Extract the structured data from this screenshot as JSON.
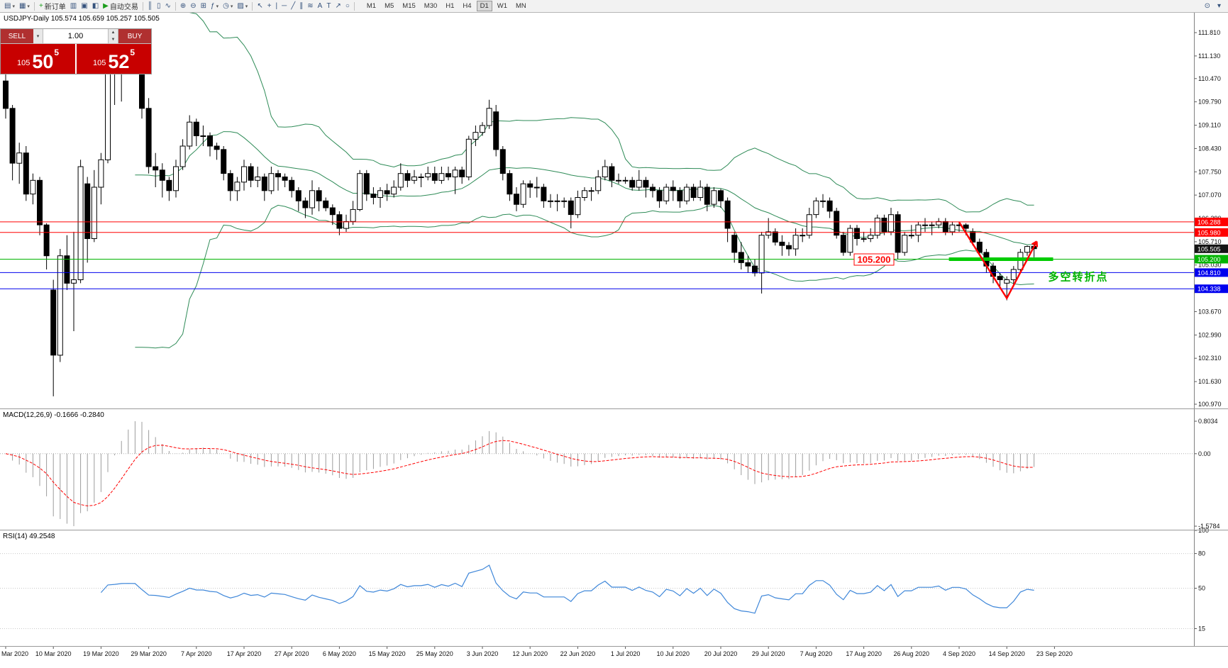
{
  "toolbar": {
    "items": [
      {
        "name": "new-chart",
        "icon": "▤",
        "caret": "▾"
      },
      {
        "name": "chart-profiles",
        "icon": "▦",
        "caret": "▾"
      },
      {
        "name": "separator"
      },
      {
        "name": "new-order",
        "icon": "+",
        "icon_color": "#1c9e1c",
        "label": "新订单"
      },
      {
        "name": "market-watch",
        "icon": "▥"
      },
      {
        "name": "data-window",
        "icon": "▣"
      },
      {
        "name": "navigator",
        "icon": "◧"
      },
      {
        "name": "auto-trading",
        "icon": "▶",
        "icon_color": "#1c9e1c",
        "label": "自动交易"
      },
      {
        "name": "separator"
      },
      {
        "name": "bar-chart-mode",
        "icon": "║"
      },
      {
        "name": "candlestick-mode",
        "icon": "▯"
      },
      {
        "name": "line-chart-mode",
        "icon": "∿"
      },
      {
        "name": "separator"
      },
      {
        "name": "zoom-in",
        "icon": "⊕"
      },
      {
        "name": "zoom-out",
        "icon": "⊖"
      },
      {
        "name": "tile-windows",
        "icon": "⊞"
      },
      {
        "name": "indicators",
        "icon": "ƒ",
        "caret": "▾"
      },
      {
        "name": "periods",
        "icon": "◷",
        "caret": "▾"
      },
      {
        "name": "templates",
        "icon": "▨",
        "caret": "▾"
      },
      {
        "name": "separator"
      },
      {
        "name": "cursor",
        "icon": "↖"
      },
      {
        "name": "crosshair",
        "icon": "+"
      },
      {
        "name": "vertical-line",
        "icon": "|"
      },
      {
        "name": "horizontal-line",
        "icon": "─"
      },
      {
        "name": "trendline",
        "icon": "╱"
      },
      {
        "name": "equidistant-channel",
        "icon": "∥"
      },
      {
        "name": "fibonacci",
        "icon": "≋"
      },
      {
        "name": "text",
        "icon": "A"
      },
      {
        "name": "text-label",
        "icon": "T"
      },
      {
        "name": "arrow-tool",
        "icon": "↗"
      },
      {
        "name": "shapes",
        "icon": "○"
      },
      {
        "name": "separator"
      }
    ],
    "timeframes": [
      "M1",
      "M5",
      "M15",
      "M30",
      "H1",
      "H4",
      "D1",
      "W1",
      "MN"
    ],
    "active_timeframe": "D1",
    "right_icons": [
      {
        "name": "search",
        "icon": "⊙"
      },
      {
        "name": "toolbar-options",
        "icon": "▾"
      }
    ]
  },
  "trade_panel": {
    "sell_label": "SELL",
    "buy_label": "BUY",
    "volume": "1.00",
    "sell_price": {
      "prefix": "105",
      "pips": "50",
      "pipette": "5"
    },
    "buy_price": {
      "prefix": "105",
      "pips": "52",
      "pipette": "5"
    }
  },
  "chart": {
    "title_line": "USDJPY-Daily  105.574 105.659 105.257 105.505"
  },
  "indicators": {
    "macd_label": "MACD(12,26,9) -0.1666 -0.2840",
    "rsi_label": "RSI(14) 49.2548"
  },
  "annotations": {
    "price_label": "105.200",
    "turning_label": "多空转折点"
  },
  "chart_data": {
    "type": "candlestick",
    "symbol": "USDJPY",
    "timeframe": "Daily",
    "ohlc_current": {
      "open": 105.574,
      "high": 105.659,
      "low": 105.257,
      "close": 105.505
    },
    "y_ticks": [
      "111.810",
      "111.130",
      "110.470",
      "109.790",
      "109.110",
      "108.430",
      "107.750",
      "107.070",
      "106.390",
      "105.710",
      "105.030",
      "104.350",
      "103.670",
      "102.990",
      "102.310",
      "101.630",
      "100.970"
    ],
    "x_labels": [
      "Mar 2020",
      "10 Mar 2020",
      "19 Mar 2020",
      "29 Mar 2020",
      "7 Apr 2020",
      "17 Apr 2020",
      "27 Apr 2020",
      "6 May 2020",
      "15 May 2020",
      "25 May 2020",
      "3 Jun 2020",
      "12 Jun 2020",
      "22 Jun 2020",
      "1 Jul 2020",
      "10 Jul 2020",
      "20 Jul 2020",
      "29 Jul 2020",
      "7 Aug 2020",
      "17 Aug 2020",
      "26 Aug 2020",
      "4 Sep 2020",
      "14 Sep 2020",
      "23 Sep 2020"
    ],
    "label_every_n_bars": 7,
    "levels": [
      {
        "label": "106.288",
        "price": 106.288,
        "color": "#ff0000",
        "line": true
      },
      {
        "label": "105.980",
        "price": 105.98,
        "color": "#ff0000",
        "line": true
      },
      {
        "label": "105.505",
        "price": 105.505,
        "color": "#141414",
        "line": false
      },
      {
        "label": "105.200",
        "price": 105.2,
        "color": "#00b400",
        "line": true
      },
      {
        "label": "104.810",
        "price": 104.81,
        "color": "#0000ee",
        "line": true
      },
      {
        "label": "104.338",
        "price": 104.338,
        "color": "#0000ee",
        "line": true
      }
    ],
    "bollinger": {
      "period": 20,
      "deviation": 2,
      "color": "#2e8b57"
    },
    "macd": {
      "fast": 12,
      "slow": 26,
      "signal": 9,
      "scale_labels": [
        "0.8034",
        "0.00",
        "-1.5784"
      ],
      "histogram_color": "#9c9c9c",
      "signal_color": "#ff0000"
    },
    "rsi": {
      "period": 14,
      "value": 49.2548,
      "line_color": "#3f87d9",
      "level_lines": [
        80,
        50,
        15
      ],
      "scale_labels": [
        {
          "label": "100",
          "value": 100
        },
        {
          "label": "80",
          "value": 80
        },
        {
          "label": "50",
          "value": 50
        },
        {
          "label": "15",
          "value": 15
        }
      ]
    },
    "drawings": {
      "thick_support": {
        "i1": 138.5,
        "i2": 153.8,
        "price": 105.2,
        "color": "#00cc00"
      },
      "zigzag": {
        "color": "#ff0000",
        "points": [
          {
            "i": 140,
            "p": 106.28
          },
          {
            "i": 147,
            "p": 104.06
          },
          {
            "i": 151.4,
            "p": 105.72
          }
        ]
      },
      "price_callout": {
        "i": 127.5,
        "p": 105.2
      },
      "turning_text": {
        "i": 157.5,
        "p": 104.7
      }
    },
    "candles": [
      [
        110.4,
        110.6,
        109.3,
        109.6
      ],
      [
        109.6,
        109.7,
        107.5,
        108.0
      ],
      [
        108.0,
        108.6,
        107.4,
        108.3
      ],
      [
        108.3,
        108.5,
        106.9,
        107.1
      ],
      [
        107.1,
        107.7,
        106.8,
        107.5
      ],
      [
        107.5,
        107.6,
        105.9,
        106.2
      ],
      [
        106.2,
        106.25,
        104.9,
        105.3
      ],
      [
        104.3,
        104.6,
        101.2,
        102.4
      ],
      [
        102.4,
        105.5,
        102.2,
        105.3
      ],
      [
        105.3,
        105.9,
        104.3,
        104.5
      ],
      [
        104.5,
        106.0,
        103.1,
        104.6
      ],
      [
        104.6,
        108.1,
        104.5,
        107.9
      ],
      [
        107.4,
        107.6,
        105.1,
        105.8
      ],
      [
        105.8,
        107.8,
        105.7,
        107.3
      ],
      [
        107.3,
        108.3,
        106.8,
        108.1
      ],
      [
        108.1,
        110.95,
        108.0,
        110.7
      ],
      [
        110.7,
        111.5,
        109.7,
        110.9
      ],
      [
        110.9,
        111.6,
        109.8,
        111.2
      ],
      [
        111.2,
        111.71,
        110.8,
        111.25
      ],
      [
        111.25,
        111.6,
        110.9,
        111.2
      ],
      [
        111.2,
        111.3,
        109.3,
        109.6
      ],
      [
        109.6,
        109.9,
        107.7,
        107.9
      ],
      [
        107.9,
        108.3,
        107.3,
        107.8
      ],
      [
        107.8,
        108.0,
        107.0,
        107.5
      ],
      [
        107.5,
        107.6,
        106.9,
        107.2
      ],
      [
        107.2,
        108.1,
        107.0,
        107.9
      ],
      [
        107.9,
        108.7,
        107.8,
        108.5
      ],
      [
        108.5,
        109.4,
        108.4,
        109.2
      ],
      [
        109.2,
        109.3,
        108.5,
        108.8
      ],
      [
        108.8,
        109.1,
        108.5,
        108.8
      ],
      [
        108.8,
        108.9,
        108.2,
        108.5
      ],
      [
        108.5,
        108.6,
        108.1,
        108.4
      ],
      [
        108.4,
        108.5,
        107.5,
        107.7
      ],
      [
        107.7,
        107.8,
        106.9,
        107.2
      ],
      [
        107.2,
        107.6,
        106.9,
        107.45
      ],
      [
        107.45,
        108.1,
        107.2,
        107.9
      ],
      [
        107.9,
        108.0,
        107.3,
        107.5
      ],
      [
        107.5,
        107.9,
        107.3,
        107.6
      ],
      [
        107.6,
        107.7,
        106.9,
        107.2
      ],
      [
        107.2,
        107.9,
        107.1,
        107.7
      ],
      [
        107.7,
        107.8,
        107.2,
        107.6
      ],
      [
        107.6,
        107.7,
        107.3,
        107.5
      ],
      [
        107.5,
        107.6,
        107.0,
        107.2
      ],
      [
        107.2,
        107.3,
        106.6,
        106.9
      ],
      [
        106.9,
        107.0,
        106.4,
        106.7
      ],
      [
        106.7,
        107.5,
        106.5,
        107.2
      ],
      [
        107.2,
        107.3,
        106.6,
        106.9
      ],
      [
        106.9,
        107.0,
        106.6,
        106.7
      ],
      [
        106.7,
        106.8,
        106.2,
        106.5
      ],
      [
        106.5,
        106.6,
        105.9,
        106.1
      ],
      [
        106.1,
        106.5,
        106.0,
        106.3
      ],
      [
        106.3,
        106.9,
        106.2,
        106.65
      ],
      [
        106.65,
        107.8,
        106.6,
        107.7
      ],
      [
        107.7,
        107.8,
        106.9,
        107.1
      ],
      [
        107.1,
        107.3,
        106.8,
        107.0
      ],
      [
        107.0,
        107.3,
        106.7,
        107.2
      ],
      [
        107.2,
        107.4,
        106.9,
        107.1
      ],
      [
        107.1,
        107.5,
        107.0,
        107.3
      ],
      [
        107.3,
        108.0,
        107.2,
        107.7
      ],
      [
        107.7,
        107.8,
        107.3,
        107.5
      ],
      [
        107.5,
        107.8,
        107.4,
        107.6
      ],
      [
        107.6,
        107.7,
        107.3,
        107.6
      ],
      [
        107.6,
        107.9,
        107.5,
        107.7
      ],
      [
        107.7,
        107.9,
        107.4,
        107.5
      ],
      [
        107.5,
        107.9,
        107.4,
        107.7
      ],
      [
        107.7,
        107.9,
        107.5,
        107.6
      ],
      [
        107.6,
        107.9,
        107.1,
        107.8
      ],
      [
        107.8,
        107.9,
        107.4,
        107.6
      ],
      [
        107.6,
        108.8,
        107.5,
        108.7
      ],
      [
        108.7,
        109.1,
        108.5,
        108.9
      ],
      [
        108.9,
        109.2,
        108.8,
        109.1
      ],
      [
        109.1,
        109.85,
        109.0,
        109.6
      ],
      [
        109.5,
        109.7,
        108.2,
        108.4
      ],
      [
        108.4,
        108.5,
        107.5,
        107.7
      ],
      [
        107.7,
        107.8,
        106.9,
        107.1
      ],
      [
        107.1,
        107.3,
        106.6,
        106.8
      ],
      [
        106.8,
        107.5,
        106.7,
        107.4
      ],
      [
        107.4,
        107.5,
        106.99,
        107.3
      ],
      [
        107.3,
        107.6,
        107.0,
        107.3
      ],
      [
        107.3,
        107.4,
        106.7,
        106.9
      ],
      [
        106.9,
        107.1,
        106.7,
        106.9
      ],
      [
        106.9,
        107.1,
        106.6,
        106.9
      ],
      [
        106.9,
        107.0,
        106.7,
        106.9
      ],
      [
        106.9,
        107.0,
        106.1,
        106.5
      ],
      [
        106.5,
        107.2,
        106.4,
        107.0
      ],
      [
        107.0,
        107.3,
        106.9,
        107.2
      ],
      [
        107.2,
        107.3,
        106.9,
        107.2
      ],
      [
        107.2,
        107.8,
        107.1,
        107.6
      ],
      [
        107.6,
        108.1,
        107.5,
        107.9
      ],
      [
        107.9,
        108.0,
        107.3,
        107.5
      ],
      [
        107.5,
        107.7,
        107.4,
        107.5
      ],
      [
        107.5,
        107.6,
        107.4,
        107.5
      ],
      [
        107.5,
        107.6,
        107.2,
        107.3
      ],
      [
        107.3,
        107.8,
        107.2,
        107.5
      ],
      [
        107.5,
        107.6,
        107.0,
        107.3
      ],
      [
        107.3,
        107.4,
        107.0,
        107.2
      ],
      [
        107.2,
        107.3,
        106.7,
        106.9
      ],
      [
        106.9,
        107.4,
        106.8,
        107.3
      ],
      [
        107.3,
        107.5,
        106.9,
        107.2
      ],
      [
        107.2,
        107.3,
        106.7,
        106.9
      ],
      [
        106.9,
        107.4,
        106.8,
        107.3
      ],
      [
        107.3,
        107.4,
        106.9,
        107.0
      ],
      [
        107.0,
        107.5,
        106.9,
        107.3
      ],
      [
        107.3,
        107.4,
        106.6,
        106.8
      ],
      [
        106.8,
        107.3,
        106.7,
        107.2
      ],
      [
        107.2,
        107.25,
        106.7,
        106.9
      ],
      [
        106.9,
        107.0,
        105.7,
        106.1
      ],
      [
        105.9,
        106.0,
        105.1,
        105.4
      ],
      [
        105.4,
        105.7,
        104.9,
        105.1
      ],
      [
        105.1,
        105.3,
        104.8,
        105.0
      ],
      [
        105.0,
        105.2,
        104.7,
        104.8
      ],
      [
        104.8,
        106.0,
        104.2,
        105.9
      ],
      [
        105.9,
        106.4,
        105.8,
        106.0
      ],
      [
        106.0,
        106.1,
        105.6,
        105.7
      ],
      [
        105.7,
        105.9,
        105.3,
        105.6
      ],
      [
        105.6,
        105.7,
        105.3,
        105.5
      ],
      [
        105.5,
        106.1,
        105.3,
        105.9
      ],
      [
        105.9,
        106.1,
        105.7,
        105.9
      ],
      [
        105.9,
        106.7,
        105.8,
        106.5
      ],
      [
        106.5,
        107.0,
        106.4,
        106.9
      ],
      [
        106.9,
        107.1,
        106.7,
        106.9
      ],
      [
        106.9,
        107.0,
        106.4,
        106.6
      ],
      [
        106.6,
        106.7,
        105.8,
        105.9
      ],
      [
        105.9,
        106.0,
        105.3,
        105.4
      ],
      [
        105.4,
        106.2,
        105.3,
        106.1
      ],
      [
        106.1,
        106.2,
        105.6,
        105.8
      ],
      [
        105.8,
        106.0,
        105.7,
        105.8
      ],
      [
        105.8,
        106.1,
        105.7,
        105.9
      ],
      [
        105.9,
        106.5,
        105.8,
        106.4
      ],
      [
        106.4,
        106.5,
        105.9,
        106.0
      ],
      [
        106.0,
        106.7,
        105.9,
        106.5
      ],
      [
        106.5,
        106.6,
        105.2,
        105.4
      ],
      [
        105.4,
        106.0,
        105.3,
        105.9
      ],
      [
        105.9,
        106.2,
        105.8,
        105.9
      ],
      [
        105.9,
        106.3,
        105.7,
        106.2
      ],
      [
        106.2,
        106.4,
        106.0,
        106.2
      ],
      [
        106.2,
        106.3,
        105.9,
        106.2
      ],
      [
        106.2,
        106.4,
        106.1,
        106.3
      ],
      [
        106.3,
        106.4,
        105.9,
        106.0
      ],
      [
        106.0,
        106.3,
        105.9,
        106.2
      ],
      [
        106.2,
        106.3,
        106.0,
        106.2
      ],
      [
        106.2,
        106.25,
        105.9,
        106.1
      ],
      [
        106.0,
        106.1,
        105.6,
        105.7
      ],
      [
        105.7,
        105.8,
        105.3,
        105.4
      ],
      [
        105.4,
        105.5,
        104.8,
        105.0
      ],
      [
        105.0,
        105.1,
        104.5,
        104.7
      ],
      [
        104.7,
        104.8,
        104.4,
        104.6
      ],
      [
        104.5,
        104.7,
        104.0,
        104.6
      ],
      [
        104.6,
        105.0,
        104.4,
        104.9
      ],
      [
        104.9,
        105.5,
        104.8,
        105.4
      ],
      [
        105.4,
        105.6,
        105.3,
        105.57
      ],
      [
        105.574,
        105.659,
        105.257,
        105.505
      ]
    ]
  }
}
